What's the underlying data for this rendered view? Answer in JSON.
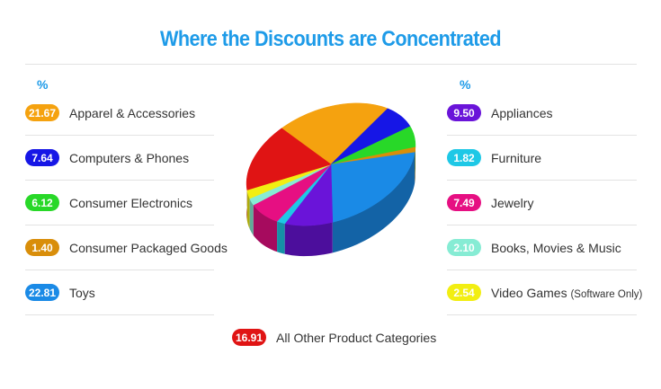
{
  "chart_data": {
    "type": "pie",
    "title": "Where the Discounts are Concentrated",
    "unit_label": "%",
    "slices": [
      {
        "label": "Apparel & Accessories",
        "value": 21.67,
        "color": "#f5a20f",
        "value_label": "21.67"
      },
      {
        "label": "Computers & Phones",
        "value": 7.64,
        "color": "#1616e6",
        "value_label": "7.64"
      },
      {
        "label": "Consumer Electronics",
        "value": 6.12,
        "color": "#28d828",
        "value_label": "6.12"
      },
      {
        "label": "Consumer Packaged Goods",
        "value": 1.4,
        "color": "#d98e0a",
        "value_label": "1.40"
      },
      {
        "label": "Toys",
        "value": 22.81,
        "color": "#1a8ae6",
        "value_label": "22.81"
      },
      {
        "label": "Appliances",
        "value": 9.5,
        "color": "#6a14d9",
        "value_label": "9.50"
      },
      {
        "label": "Furniture",
        "value": 1.82,
        "color": "#1ec8e6",
        "value_label": "1.82"
      },
      {
        "label": "Jewelry",
        "value": 7.49,
        "color": "#e60f82",
        "value_label": "7.49"
      },
      {
        "label": "Books, Movies & Music",
        "value": 2.1,
        "color": "#86ecd4",
        "value_label": "2.10"
      },
      {
        "label": "Video Games",
        "label_note": "(Software Only)",
        "value": 2.54,
        "color": "#f2ee12",
        "value_label": "2.54"
      },
      {
        "label": "All Other Product Categories",
        "value": 16.91,
        "color": "#e01414",
        "value_label": "16.91"
      }
    ]
  }
}
